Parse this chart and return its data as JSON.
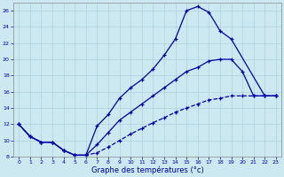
{
  "xlabel": "Graphe des températures (°c)",
  "xlim": [
    -0.5,
    23.5
  ],
  "ylim": [
    8,
    27
  ],
  "xticks": [
    0,
    1,
    2,
    3,
    4,
    5,
    6,
    7,
    8,
    9,
    10,
    11,
    12,
    13,
    14,
    15,
    16,
    17,
    18,
    19,
    20,
    21,
    22,
    23
  ],
  "yticks": [
    8,
    10,
    12,
    14,
    16,
    18,
    20,
    22,
    24,
    26
  ],
  "bg_color": "#cce8f0",
  "line_color": "#0000aa",
  "line_top": {
    "x": [
      0,
      1,
      2,
      3,
      4,
      5,
      6,
      7,
      8,
      9,
      10,
      11,
      12,
      13,
      14,
      15,
      16,
      17,
      18,
      19,
      22,
      23
    ],
    "y": [
      12.0,
      10.5,
      9.8,
      9.8,
      8.8,
      8.2,
      8.2,
      11.8,
      13.2,
      15.2,
      16.5,
      17.5,
      18.8,
      20.5,
      22.5,
      26.0,
      26.5,
      25.8,
      23.5,
      22.5,
      15.5,
      15.5
    ]
  },
  "line_mid": {
    "x": [
      0,
      1,
      2,
      3,
      4,
      5,
      6,
      7,
      8,
      9,
      10,
      11,
      12,
      13,
      14,
      15,
      16,
      17,
      18,
      19,
      20,
      21,
      22,
      23
    ],
    "y": [
      12.0,
      10.5,
      9.8,
      9.8,
      8.8,
      8.2,
      8.2,
      9.5,
      11.0,
      12.5,
      13.5,
      14.5,
      15.5,
      16.5,
      17.5,
      18.5,
      19.0,
      19.8,
      20.0,
      20.0,
      18.5,
      15.5,
      15.5,
      15.5
    ]
  },
  "line_bot": {
    "x": [
      0,
      1,
      2,
      3,
      4,
      5,
      6,
      7,
      8,
      9,
      10,
      11,
      12,
      13,
      14,
      15,
      16,
      17,
      18,
      19,
      20,
      21,
      22,
      23
    ],
    "y": [
      12.0,
      10.5,
      9.8,
      9.8,
      8.8,
      8.2,
      8.2,
      8.5,
      9.2,
      10.0,
      10.8,
      11.5,
      12.2,
      12.8,
      13.5,
      14.0,
      14.5,
      15.0,
      15.2,
      15.5,
      15.5,
      15.5,
      15.5,
      15.5
    ]
  }
}
